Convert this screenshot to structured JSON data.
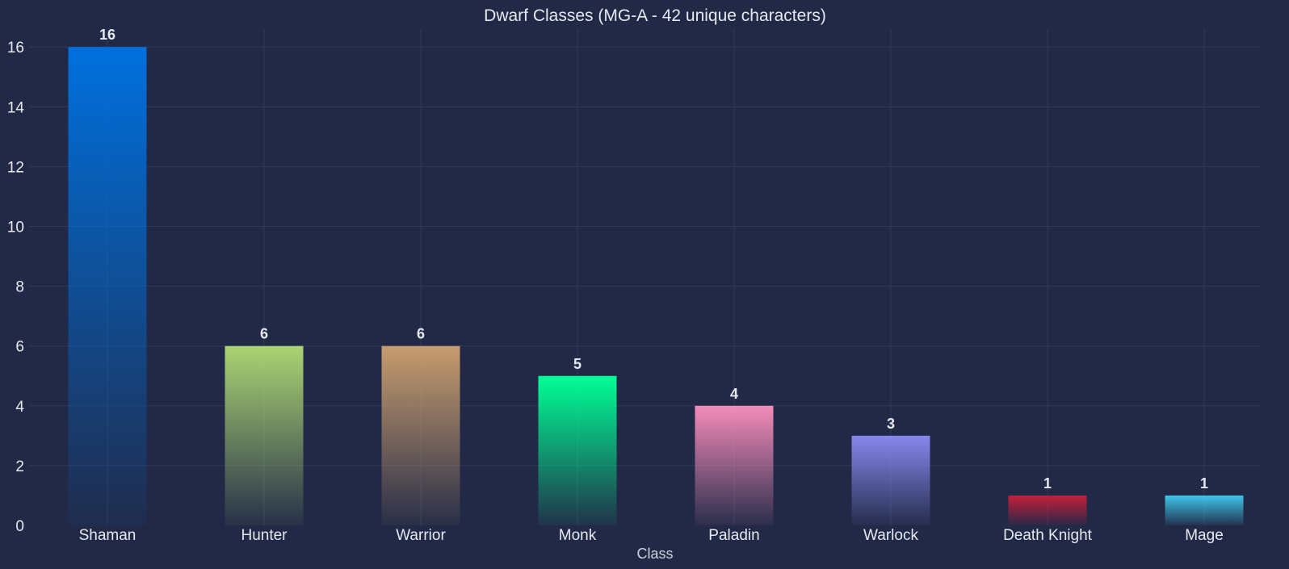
{
  "chart_data": {
    "type": "bar",
    "title": "Dwarf Classes (MG-A - 42 unique characters)",
    "xlabel": "Class",
    "ylabel": "",
    "categories": [
      "Shaman",
      "Hunter",
      "Warrior",
      "Monk",
      "Paladin",
      "Warlock",
      "Death Knight",
      "Mage"
    ],
    "values": [
      16,
      6,
      6,
      5,
      4,
      3,
      1,
      1
    ],
    "colors": [
      "#0070DE",
      "#ABD473",
      "#C79C6E",
      "#00FF96",
      "#F58CBA",
      "#8787ED",
      "#C41F3B",
      "#40C7EB"
    ],
    "ylim": [
      0,
      16.6
    ],
    "yticks": [
      0,
      2,
      4,
      6,
      8,
      10,
      12,
      14,
      16
    ],
    "grid": true,
    "data_labels": true,
    "background": "#212946"
  }
}
